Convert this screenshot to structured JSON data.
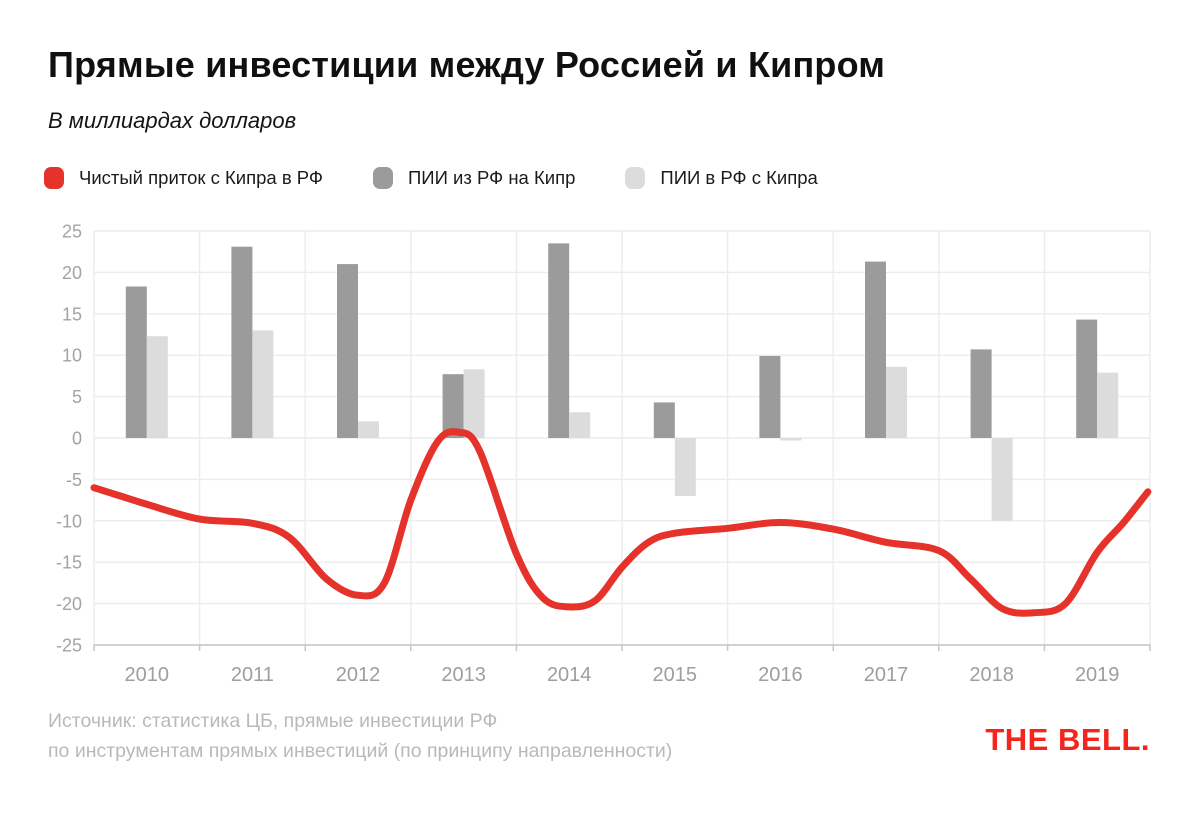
{
  "header": {
    "title": "Прямые инвестиции между Россией и Кипром",
    "subtitle": "В миллиардах долларов"
  },
  "legend": [
    {
      "label": "Чистый приток с Кипра в РФ",
      "color": "#e5322a"
    },
    {
      "label": "ПИИ из РФ на Кипр",
      "color": "#9b9b9b"
    },
    {
      "label": "ПИИ в РФ с Кипра",
      "color": "#dcdcdc"
    }
  ],
  "chart_data": {
    "type": "combo-bar-line",
    "categories": [
      "2010",
      "2011",
      "2012",
      "2013",
      "2014",
      "2015",
      "2016",
      "2017",
      "2018",
      "2019"
    ],
    "series": [
      {
        "name": "Чистый приток с Кипра в РФ",
        "type": "line",
        "color": "#e5322a",
        "points": [
          [
            2009.5,
            -6.0
          ],
          [
            2009.75,
            -7.0
          ],
          [
            2010.0,
            -8.0
          ],
          [
            2010.5,
            -9.8
          ],
          [
            2011.0,
            -10.3
          ],
          [
            2011.35,
            -12.0
          ],
          [
            2011.7,
            -17.0
          ],
          [
            2012.0,
            -19.0
          ],
          [
            2012.25,
            -17.5
          ],
          [
            2012.5,
            -7.5
          ],
          [
            2012.75,
            -0.5
          ],
          [
            2012.95,
            0.7
          ],
          [
            2013.15,
            -1.5
          ],
          [
            2013.5,
            -14.0
          ],
          [
            2013.75,
            -19.3
          ],
          [
            2014.0,
            -20.4
          ],
          [
            2014.25,
            -19.6
          ],
          [
            2014.5,
            -15.6
          ],
          [
            2014.75,
            -12.6
          ],
          [
            2015.0,
            -11.5
          ],
          [
            2015.5,
            -10.9
          ],
          [
            2016.0,
            -10.2
          ],
          [
            2016.5,
            -11.0
          ],
          [
            2017.0,
            -12.6
          ],
          [
            2017.5,
            -13.6
          ],
          [
            2017.8,
            -17.0
          ],
          [
            2018.1,
            -20.6
          ],
          [
            2018.4,
            -21.1
          ],
          [
            2018.7,
            -20.0
          ],
          [
            2019.0,
            -13.8
          ],
          [
            2019.25,
            -10.2
          ],
          [
            2019.48,
            -6.5
          ]
        ]
      },
      {
        "name": "ПИИ из РФ на Кипр",
        "type": "bar",
        "color": "#9b9b9b",
        "values": [
          18.3,
          23.1,
          21.0,
          7.7,
          23.5,
          4.3,
          9.9,
          21.3,
          10.7,
          14.3
        ]
      },
      {
        "name": "ПИИ в РФ с Кипра",
        "type": "bar",
        "color": "#dcdcdc",
        "values": [
          12.3,
          13.0,
          2.0,
          8.3,
          3.1,
          -7.0,
          -0.3,
          8.6,
          -10.0,
          7.9
        ]
      }
    ],
    "yticks": [
      25,
      20,
      15,
      10,
      5,
      0,
      -5,
      -10,
      -15,
      -20,
      -25
    ],
    "ylim": [
      -25,
      25
    ],
    "xlabel": "",
    "ylabel": "",
    "grid": true,
    "legend_position": "top"
  },
  "footer": {
    "source_line1": "Источник: статистика ЦБ, прямые инвестиции РФ",
    "source_line2": "по инструментам прямых инвестиций (по принципу направленности)",
    "logo_text": "THE BELL.",
    "logo_color": "#f5241c"
  }
}
